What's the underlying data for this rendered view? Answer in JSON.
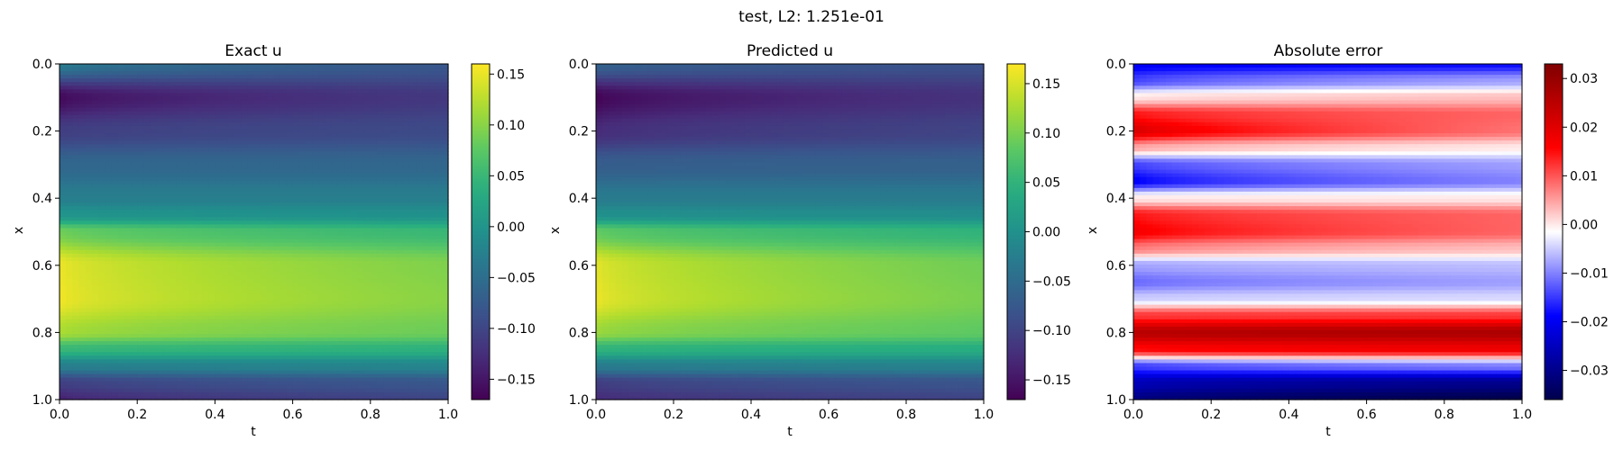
{
  "figure": {
    "suptitle": "test, L2: 1.251e-01"
  },
  "chart_data": [
    {
      "type": "heatmap",
      "title": "Exact u",
      "xlabel": "t",
      "ylabel": "x",
      "xlim": [
        0.0,
        1.0
      ],
      "ylim": [
        1.0,
        0.0
      ],
      "x_ticks": [
        "0.0",
        "0.2",
        "0.4",
        "0.6",
        "0.8",
        "1.0"
      ],
      "y_ticks": [
        "0.0",
        "0.2",
        "0.4",
        "0.6",
        "0.8",
        "1.0"
      ],
      "colormap": "viridis",
      "colorbar": {
        "range": [
          -0.17,
          0.16
        ],
        "ticks": [
          0.15,
          0.1,
          0.05,
          0.0,
          -0.05,
          -0.1,
          -0.15
        ],
        "tick_labels": [
          "0.15",
          "0.10",
          "0.05",
          "0.00",
          "−0.05",
          "−0.10",
          "−0.15"
        ]
      },
      "field": {
        "x": [
          0.0,
          0.1,
          0.2,
          0.3,
          0.4,
          0.45,
          0.5,
          0.6,
          0.7,
          0.8,
          0.85,
          0.9,
          0.95,
          1.0
        ],
        "value_t0": [
          -0.03,
          -0.165,
          -0.11,
          -0.06,
          -0.03,
          0.0,
          0.09,
          0.155,
          0.158,
          0.12,
          0.05,
          -0.03,
          -0.11,
          -0.14
        ],
        "value_t1": [
          -0.08,
          -0.115,
          -0.095,
          -0.06,
          -0.03,
          -0.005,
          0.05,
          0.095,
          0.1,
          0.085,
          0.04,
          -0.02,
          -0.08,
          -0.1
        ]
      }
    },
    {
      "type": "heatmap",
      "title": "Predicted u",
      "xlabel": "t",
      "ylabel": "x",
      "xlim": [
        0.0,
        1.0
      ],
      "ylim": [
        1.0,
        0.0
      ],
      "x_ticks": [
        "0.0",
        "0.2",
        "0.4",
        "0.6",
        "0.8",
        "1.0"
      ],
      "y_ticks": [
        "0.0",
        "0.2",
        "0.4",
        "0.6",
        "0.8",
        "1.0"
      ],
      "colormap": "viridis",
      "colorbar": {
        "range": [
          -0.17,
          0.17
        ],
        "ticks": [
          0.15,
          0.1,
          0.05,
          0.0,
          -0.05,
          -0.1,
          -0.15
        ],
        "tick_labels": [
          "0.15",
          "0.10",
          "0.05",
          "0.00",
          "−0.05",
          "−0.10",
          "−0.15"
        ]
      },
      "field": {
        "x": [
          0.0,
          0.1,
          0.2,
          0.3,
          0.4,
          0.45,
          0.5,
          0.6,
          0.7,
          0.8,
          0.85,
          0.9,
          0.95,
          1.0
        ],
        "value_t0": [
          -0.06,
          -0.17,
          -0.13,
          -0.07,
          -0.03,
          0.0,
          0.09,
          0.16,
          0.165,
          0.12,
          0.05,
          -0.03,
          -0.11,
          -0.13
        ],
        "value_t1": [
          -0.085,
          -0.12,
          -0.1,
          -0.065,
          -0.03,
          -0.005,
          0.05,
          0.095,
          0.1,
          0.085,
          0.04,
          -0.02,
          -0.08,
          -0.1
        ]
      }
    },
    {
      "type": "heatmap",
      "title": "Absolute error",
      "xlabel": "t",
      "ylabel": "x",
      "xlim": [
        0.0,
        1.0
      ],
      "ylim": [
        1.0,
        0.0
      ],
      "x_ticks": [
        "0.0",
        "0.2",
        "0.4",
        "0.6",
        "0.8",
        "1.0"
      ],
      "y_ticks": [
        "0.0",
        "0.2",
        "0.4",
        "0.6",
        "0.8",
        "1.0"
      ],
      "colormap": "seismic",
      "colorbar": {
        "range": [
          -0.036,
          0.033
        ],
        "ticks": [
          0.03,
          0.02,
          0.01,
          0.0,
          -0.01,
          -0.02,
          -0.03
        ],
        "tick_labels": [
          "0.03",
          "0.02",
          "0.01",
          "0.00",
          "−0.01",
          "−0.02",
          "−0.03"
        ]
      },
      "field": {
        "x": [
          0.0,
          0.05,
          0.1,
          0.15,
          0.2,
          0.25,
          0.3,
          0.35,
          0.4,
          0.45,
          0.5,
          0.55,
          0.6,
          0.65,
          0.7,
          0.75,
          0.8,
          0.85,
          0.9,
          0.95,
          1.0
        ],
        "value_t0": [
          -0.02,
          -0.015,
          0.0,
          0.015,
          0.022,
          0.005,
          -0.015,
          -0.02,
          0.0,
          0.015,
          0.018,
          0.008,
          -0.008,
          -0.012,
          -0.005,
          0.012,
          0.025,
          0.015,
          -0.015,
          -0.025,
          -0.03
        ],
        "value_t1": [
          -0.018,
          -0.008,
          0.003,
          0.009,
          0.008,
          0.0,
          -0.008,
          -0.01,
          0.0,
          0.009,
          0.009,
          0.003,
          -0.006,
          -0.008,
          -0.004,
          0.012,
          0.027,
          0.018,
          -0.01,
          -0.03,
          -0.036
        ]
      }
    }
  ]
}
